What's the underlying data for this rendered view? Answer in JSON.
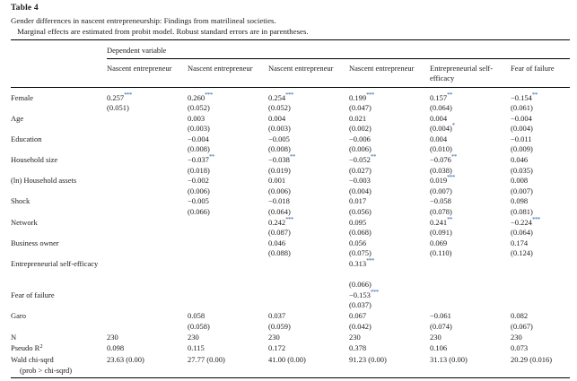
{
  "colors": {
    "star": "#3567a6",
    "text": "#1b1b1b",
    "rule": "#000000",
    "background": "#ffffff"
  },
  "header": {
    "title": "Table 4",
    "caption": "Gender differences in nascent entrepreneurship: Findings from matrilineal societies.",
    "note": "Marginal effects are estimated from probit model. Robust standard errors are in parentheses."
  },
  "table": {
    "dependent_variable_label": "Dependent variable",
    "columns": [
      "Nascent entrepreneur",
      "Nascent entrepreneur",
      "Nascent entrepreneur",
      "Nascent entrepreneur",
      "Entrepreneurial self-efficacy",
      "Fear of failure"
    ],
    "rows": [
      {
        "label": "Female",
        "cells": [
          {
            "v": "0.257",
            "s": "***",
            "se": "(0.051)"
          },
          {
            "v": "0.260",
            "s": "***",
            "se": "(0.052)"
          },
          {
            "v": "0.254",
            "s": "***",
            "se": "(0.052)"
          },
          {
            "v": "0.199",
            "s": "***",
            "se": "(0.047)"
          },
          {
            "v": "0.157",
            "s": "**",
            "se": "(0.064)"
          },
          {
            "v": "−0.154",
            "s": "**",
            "se": "(0.061)"
          }
        ]
      },
      {
        "label": "Age",
        "cells": [
          null,
          {
            "v": "0.003",
            "se": "(0.003)"
          },
          {
            "v": "0.004",
            "se": "(0.003)"
          },
          {
            "v": "0.021",
            "se": "(0.002)"
          },
          {
            "v": "0.004",
            "se": "(0.004)",
            "ses": "*"
          },
          {
            "v": "−0.004",
            "se": "(0.004)"
          }
        ]
      },
      {
        "label": "Education",
        "cells": [
          null,
          {
            "v": "−0.004",
            "se": "(0.008)"
          },
          {
            "v": "−0.005",
            "se": "(0.008)"
          },
          {
            "v": "−0.006",
            "se": "(0.006)"
          },
          {
            "v": "0.004",
            "se": "(0.010)"
          },
          {
            "v": "−0.011",
            "se": "(0.009)"
          }
        ]
      },
      {
        "label": "Household size",
        "cells": [
          null,
          {
            "v": "−0.037",
            "s": "**",
            "se": "(0.018)"
          },
          {
            "v": "−0.038",
            "s": "**",
            "se": "(0.019)"
          },
          {
            "v": "−0.052",
            "s": "**",
            "se": "(0.027)"
          },
          {
            "v": "−0.076",
            "s": "**",
            "se": "(0.038)"
          },
          {
            "v": "0.046",
            "se": "(0.035)"
          }
        ]
      },
      {
        "label": "(ln) Household assets",
        "cells": [
          null,
          {
            "v": "−0.002",
            "se": "(0.006)"
          },
          {
            "v": "0.001",
            "se": "(0.006)"
          },
          {
            "v": "−0.003",
            "se": "(0.004)"
          },
          {
            "v": "0.019",
            "s": "***",
            "se": "(0.007)"
          },
          {
            "v": "0.008",
            "se": "(0.007)"
          }
        ]
      },
      {
        "label": "Shock",
        "cells": [
          null,
          {
            "v": "−0.005",
            "se": "(0.066)"
          },
          {
            "v": "−0.018",
            "se": "(0.064)"
          },
          {
            "v": "0.017",
            "se": "(0.056)"
          },
          {
            "v": "−0.058",
            "se": "(0.078)"
          },
          {
            "v": "0.098",
            "se": "(0.081)"
          }
        ]
      },
      {
        "label": "Network",
        "cells": [
          null,
          null,
          {
            "v": "0.242",
            "s": "***",
            "se": "(0.087)"
          },
          {
            "v": "0.095",
            "se": "(0.068)"
          },
          {
            "v": "0.241",
            "s": "**",
            "se": "(0.091)"
          },
          {
            "v": "−0.224",
            "s": "***",
            "se": "(0.064)"
          }
        ]
      },
      {
        "label": "Business owner",
        "cells": [
          null,
          null,
          {
            "v": "0.046",
            "se": "(0.088)"
          },
          {
            "v": "0.056",
            "se": "(0.075)"
          },
          {
            "v": "0.069",
            "se": "(0.110)"
          },
          {
            "v": "0.174",
            "se": "(0.124)"
          }
        ]
      },
      {
        "label": "Entrepreneurial self-efficacy",
        "gap": true,
        "cells": [
          null,
          null,
          null,
          {
            "v": "0.313",
            "s": "***",
            "se": "(0.066)"
          },
          null,
          null
        ]
      },
      {
        "label": "Fear of failure",
        "cells": [
          null,
          null,
          null,
          {
            "v": "−0.153",
            "s": "***",
            "se": "(0.037)"
          },
          null,
          null
        ]
      },
      {
        "label": "Garo",
        "cells": [
          null,
          {
            "v": "0.058",
            "se": "(0.058)"
          },
          {
            "v": "0.037",
            "se": "(0.059)"
          },
          {
            "v": "0.067",
            "se": "(0.042)"
          },
          {
            "v": "−0.061",
            "se": "(0.074)"
          },
          {
            "v": "0.082",
            "se": "(0.067)"
          }
        ]
      }
    ],
    "stats": [
      {
        "label": "N",
        "values": [
          "230",
          "230",
          "230",
          "230",
          "230",
          "230"
        ]
      },
      {
        "label": "Pseudo R",
        "sup": "2",
        "values": [
          "0.098",
          "0.115",
          "0.172",
          "0.378",
          "0.106",
          "0.073"
        ]
      },
      {
        "label": "Wald chi-sqrd",
        "label2": "(prob > chi-sqrd)",
        "values": [
          "23.63 (0.00)",
          "27.77 (0.00)",
          "41.00 (0.00)",
          "91.23 (0.00)",
          "31.13 (0.00)",
          "20.29 (0.016)"
        ]
      }
    ]
  }
}
